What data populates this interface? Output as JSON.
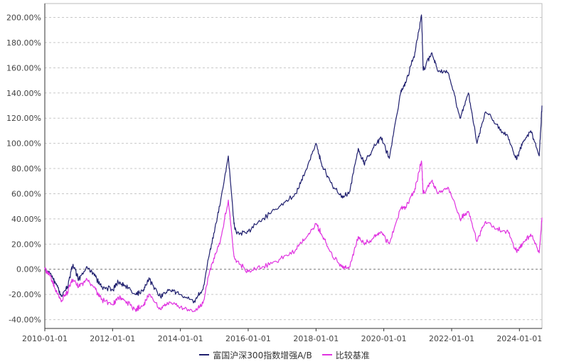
{
  "chart_data": {
    "type": "line",
    "y_ticks": [
      "200.00%",
      "180.00%",
      "160.00%",
      "140.00%",
      "120.00%",
      "100.00%",
      "80.00%",
      "60.00%",
      "40.00%",
      "20.00%",
      "0.00%",
      "-20.00%",
      "-40.00%"
    ],
    "y_tick_values": [
      200,
      180,
      160,
      140,
      120,
      100,
      80,
      60,
      40,
      20,
      0,
      -20,
      -40
    ],
    "ylim": [
      -47,
      211
    ],
    "x_ticks": [
      "2010-01-01",
      "2012-01-01",
      "2014-01-01",
      "2016-01-01",
      "2018-01-01",
      "2020-01-01",
      "2022-01-01",
      "2024-01-01"
    ],
    "xlim": [
      "2010-01-01",
      "2024-08-31"
    ],
    "grid": true,
    "legend_position": "bottom",
    "series": [
      {
        "name": "富国沪深300指数增强A/B",
        "color": "#1f1f6e",
        "points": [
          [
            "2010-01-01",
            0
          ],
          [
            "2010-03-01",
            -3
          ],
          [
            "2010-05-01",
            -12
          ],
          [
            "2010-07-01",
            -21
          ],
          [
            "2010-09-01",
            -14
          ],
          [
            "2010-11-01",
            4
          ],
          [
            "2011-01-01",
            -8
          ],
          [
            "2011-04-01",
            2
          ],
          [
            "2011-07-01",
            -6
          ],
          [
            "2011-09-01",
            -14
          ],
          [
            "2012-01-01",
            -16
          ],
          [
            "2012-03-01",
            -10
          ],
          [
            "2012-05-01",
            -12
          ],
          [
            "2012-09-01",
            -20
          ],
          [
            "2012-12-01",
            -16
          ],
          [
            "2013-02-01",
            -8
          ],
          [
            "2013-06-01",
            -22
          ],
          [
            "2013-09-01",
            -16
          ],
          [
            "2014-01-01",
            -20
          ],
          [
            "2014-06-01",
            -25
          ],
          [
            "2014-09-01",
            -16
          ],
          [
            "2014-12-01",
            20
          ],
          [
            "2015-03-01",
            50
          ],
          [
            "2015-06-01",
            90
          ],
          [
            "2015-08-01",
            36
          ],
          [
            "2015-09-01",
            28
          ],
          [
            "2016-01-01",
            30
          ],
          [
            "2016-06-01",
            40
          ],
          [
            "2016-12-01",
            50
          ],
          [
            "2017-06-01",
            60
          ],
          [
            "2017-09-01",
            76
          ],
          [
            "2018-01-01",
            100
          ],
          [
            "2018-03-01",
            84
          ],
          [
            "2018-06-01",
            70
          ],
          [
            "2018-10-01",
            57
          ],
          [
            "2019-01-01",
            62
          ],
          [
            "2019-04-01",
            96
          ],
          [
            "2019-06-01",
            84
          ],
          [
            "2019-09-01",
            95
          ],
          [
            "2019-12-01",
            105
          ],
          [
            "2020-03-01",
            88
          ],
          [
            "2020-07-01",
            140
          ],
          [
            "2020-09-01",
            150
          ],
          [
            "2020-12-01",
            172
          ],
          [
            "2021-02-10",
            202
          ],
          [
            "2021-03-01",
            158
          ],
          [
            "2021-06-01",
            172
          ],
          [
            "2021-08-01",
            158
          ],
          [
            "2021-12-01",
            155
          ],
          [
            "2022-04-01",
            120
          ],
          [
            "2022-07-01",
            140
          ],
          [
            "2022-10-01",
            100
          ],
          [
            "2023-01-01",
            125
          ],
          [
            "2023-05-01",
            115
          ],
          [
            "2023-09-01",
            105
          ],
          [
            "2023-12-01",
            87
          ],
          [
            "2024-02-01",
            100
          ],
          [
            "2024-05-01",
            110
          ],
          [
            "2024-08-01",
            90
          ],
          [
            "2024-08-31",
            130
          ]
        ]
      },
      {
        "name": "比较基准",
        "color": "#e033e0",
        "points": [
          [
            "2010-01-01",
            0
          ],
          [
            "2010-03-01",
            -5
          ],
          [
            "2010-05-01",
            -18
          ],
          [
            "2010-07-01",
            -25
          ],
          [
            "2010-09-01",
            -18
          ],
          [
            "2010-11-01",
            -8
          ],
          [
            "2011-01-01",
            -14
          ],
          [
            "2011-04-01",
            -8
          ],
          [
            "2011-07-01",
            -16
          ],
          [
            "2011-09-01",
            -24
          ],
          [
            "2012-01-01",
            -28
          ],
          [
            "2012-03-01",
            -22
          ],
          [
            "2012-05-01",
            -24
          ],
          [
            "2012-09-01",
            -32
          ],
          [
            "2012-12-01",
            -28
          ],
          [
            "2013-02-01",
            -20
          ],
          [
            "2013-06-01",
            -32
          ],
          [
            "2013-09-01",
            -26
          ],
          [
            "2014-01-01",
            -30
          ],
          [
            "2014-06-01",
            -33
          ],
          [
            "2014-09-01",
            -27
          ],
          [
            "2014-12-01",
            4
          ],
          [
            "2015-03-01",
            20
          ],
          [
            "2015-06-01",
            55
          ],
          [
            "2015-08-01",
            10
          ],
          [
            "2015-09-01",
            6
          ],
          [
            "2016-01-01",
            -2
          ],
          [
            "2016-06-01",
            2
          ],
          [
            "2016-12-01",
            8
          ],
          [
            "2017-06-01",
            16
          ],
          [
            "2017-09-01",
            24
          ],
          [
            "2018-01-01",
            36
          ],
          [
            "2018-03-01",
            28
          ],
          [
            "2018-06-01",
            14
          ],
          [
            "2018-10-01",
            2
          ],
          [
            "2019-01-01",
            2
          ],
          [
            "2019-04-01",
            26
          ],
          [
            "2019-06-01",
            20
          ],
          [
            "2019-09-01",
            24
          ],
          [
            "2019-12-01",
            30
          ],
          [
            "2020-03-01",
            20
          ],
          [
            "2020-07-01",
            48
          ],
          [
            "2020-09-01",
            50
          ],
          [
            "2020-12-01",
            64
          ],
          [
            "2021-02-10",
            86
          ],
          [
            "2021-03-01",
            60
          ],
          [
            "2021-06-01",
            70
          ],
          [
            "2021-08-01",
            60
          ],
          [
            "2021-12-01",
            64
          ],
          [
            "2022-04-01",
            40
          ],
          [
            "2022-07-01",
            46
          ],
          [
            "2022-10-01",
            22
          ],
          [
            "2023-01-01",
            38
          ],
          [
            "2023-05-01",
            32
          ],
          [
            "2023-09-01",
            30
          ],
          [
            "2023-12-01",
            14
          ],
          [
            "2024-02-01",
            20
          ],
          [
            "2024-05-01",
            28
          ],
          [
            "2024-08-01",
            13
          ],
          [
            "2024-08-31",
            41
          ]
        ]
      }
    ]
  }
}
